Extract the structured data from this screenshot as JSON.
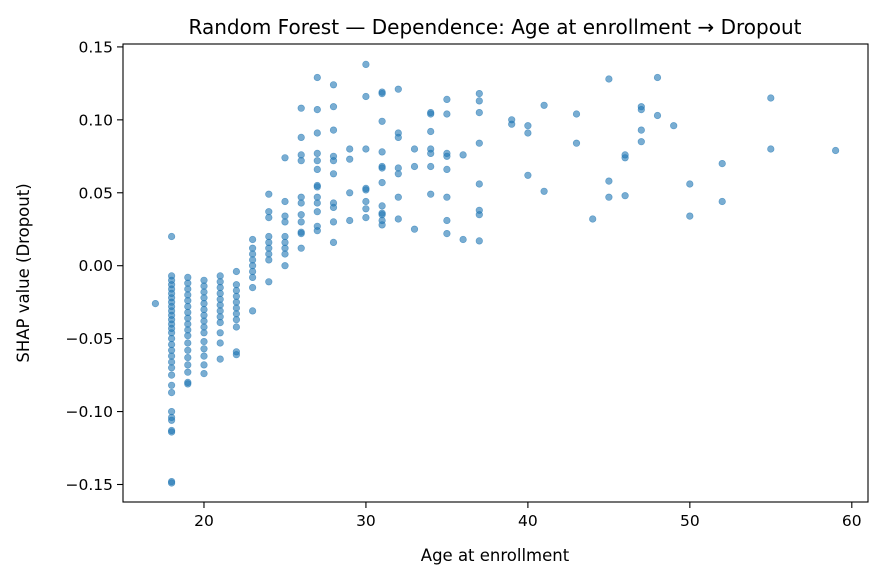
{
  "chart_data": {
    "type": "scatter",
    "title": "Random Forest — Dependence: Age at enrollment → Dropout",
    "xlabel": "Age at enrollment",
    "ylabel": "SHAP value (Dropout)",
    "xlim": [
      15,
      61
    ],
    "ylim": [
      -0.162,
      0.152
    ],
    "xticks": [
      20,
      30,
      40,
      50,
      60
    ],
    "yticks": [
      -0.15,
      -0.1,
      -0.05,
      0.0,
      0.05,
      0.1,
      0.15
    ],
    "xtick_labels": [
      "20",
      "30",
      "40",
      "50",
      "60"
    ],
    "ytick_labels": [
      "−0.15",
      "−0.10",
      "−0.05",
      "0.00",
      "0.05",
      "0.10",
      "0.15"
    ],
    "grid": false,
    "point_color": "#1f77b4",
    "point_opacity": 0.6,
    "series": [
      {
        "points": [
          [
            17,
            -0.026
          ],
          [
            18,
            0.02
          ],
          [
            18,
            -0.007
          ],
          [
            18,
            -0.01
          ],
          [
            18,
            -0.013
          ],
          [
            18,
            -0.016
          ],
          [
            18,
            -0.019
          ],
          [
            18,
            -0.022
          ],
          [
            18,
            -0.025
          ],
          [
            18,
            -0.028
          ],
          [
            18,
            -0.031
          ],
          [
            18,
            -0.034
          ],
          [
            18,
            -0.037
          ],
          [
            18,
            -0.04
          ],
          [
            18,
            -0.043
          ],
          [
            18,
            -0.046
          ],
          [
            18,
            -0.05
          ],
          [
            18,
            -0.054
          ],
          [
            18,
            -0.058
          ],
          [
            18,
            -0.062
          ],
          [
            18,
            -0.066
          ],
          [
            18,
            -0.07
          ],
          [
            18,
            -0.075
          ],
          [
            18,
            -0.082
          ],
          [
            18,
            -0.087
          ],
          [
            18,
            -0.1
          ],
          [
            18,
            -0.104
          ],
          [
            18,
            -0.106
          ],
          [
            18,
            -0.113
          ],
          [
            18,
            -0.114
          ],
          [
            18,
            -0.148
          ],
          [
            18,
            -0.149
          ],
          [
            19,
            -0.008
          ],
          [
            19,
            -0.012
          ],
          [
            19,
            -0.016
          ],
          [
            19,
            -0.02
          ],
          [
            19,
            -0.024
          ],
          [
            19,
            -0.028
          ],
          [
            19,
            -0.032
          ],
          [
            19,
            -0.036
          ],
          [
            19,
            -0.04
          ],
          [
            19,
            -0.044
          ],
          [
            19,
            -0.048
          ],
          [
            19,
            -0.053
          ],
          [
            19,
            -0.058
          ],
          [
            19,
            -0.063
          ],
          [
            19,
            -0.068
          ],
          [
            19,
            -0.073
          ],
          [
            19,
            -0.08
          ],
          [
            19,
            -0.081
          ],
          [
            20,
            -0.01
          ],
          [
            20,
            -0.014
          ],
          [
            20,
            -0.018
          ],
          [
            20,
            -0.022
          ],
          [
            20,
            -0.026
          ],
          [
            20,
            -0.03
          ],
          [
            20,
            -0.034
          ],
          [
            20,
            -0.038
          ],
          [
            20,
            -0.042
          ],
          [
            20,
            -0.046
          ],
          [
            20,
            -0.052
          ],
          [
            20,
            -0.057
          ],
          [
            20,
            -0.062
          ],
          [
            20,
            -0.068
          ],
          [
            20,
            -0.074
          ],
          [
            21,
            -0.007
          ],
          [
            21,
            -0.011
          ],
          [
            21,
            -0.015
          ],
          [
            21,
            -0.019
          ],
          [
            21,
            -0.023
          ],
          [
            21,
            -0.027
          ],
          [
            21,
            -0.031
          ],
          [
            21,
            -0.035
          ],
          [
            21,
            -0.039
          ],
          [
            21,
            -0.046
          ],
          [
            21,
            -0.053
          ],
          [
            21,
            -0.064
          ],
          [
            22,
            -0.004
          ],
          [
            22,
            -0.013
          ],
          [
            22,
            -0.017
          ],
          [
            22,
            -0.021
          ],
          [
            22,
            -0.025
          ],
          [
            22,
            -0.029
          ],
          [
            22,
            -0.033
          ],
          [
            22,
            -0.037
          ],
          [
            22,
            -0.042
          ],
          [
            22,
            -0.059
          ],
          [
            22,
            -0.061
          ],
          [
            23,
            0.018
          ],
          [
            23,
            0.012
          ],
          [
            23,
            0.008
          ],
          [
            23,
            0.004
          ],
          [
            23,
            0.0
          ],
          [
            23,
            -0.004
          ],
          [
            23,
            -0.008
          ],
          [
            23,
            -0.015
          ],
          [
            23,
            -0.031
          ],
          [
            24,
            0.049
          ],
          [
            24,
            0.037
          ],
          [
            24,
            0.033
          ],
          [
            24,
            0.02
          ],
          [
            24,
            0.016
          ],
          [
            24,
            0.012
          ],
          [
            24,
            0.008
          ],
          [
            24,
            0.004
          ],
          [
            24,
            -0.011
          ],
          [
            25,
            0.074
          ],
          [
            25,
            0.044
          ],
          [
            25,
            0.034
          ],
          [
            25,
            0.03
          ],
          [
            25,
            0.02
          ],
          [
            25,
            0.016
          ],
          [
            25,
            0.012
          ],
          [
            25,
            0.008
          ],
          [
            25,
            0.0
          ],
          [
            26,
            0.108
          ],
          [
            26,
            0.088
          ],
          [
            26,
            0.076
          ],
          [
            26,
            0.072
          ],
          [
            26,
            0.047
          ],
          [
            26,
            0.043
          ],
          [
            26,
            0.035
          ],
          [
            26,
            0.03
          ],
          [
            26,
            0.023
          ],
          [
            26,
            0.022
          ],
          [
            26,
            0.012
          ],
          [
            27,
            0.129
          ],
          [
            27,
            0.107
          ],
          [
            27,
            0.091
          ],
          [
            27,
            0.077
          ],
          [
            27,
            0.072
          ],
          [
            27,
            0.066
          ],
          [
            27,
            0.055
          ],
          [
            27,
            0.054
          ],
          [
            27,
            0.047
          ],
          [
            27,
            0.043
          ],
          [
            27,
            0.037
          ],
          [
            27,
            0.027
          ],
          [
            27,
            0.024
          ],
          [
            28,
            0.124
          ],
          [
            28,
            0.109
          ],
          [
            28,
            0.093
          ],
          [
            28,
            0.075
          ],
          [
            28,
            0.072
          ],
          [
            28,
            0.063
          ],
          [
            28,
            0.043
          ],
          [
            28,
            0.04
          ],
          [
            28,
            0.03
          ],
          [
            28,
            0.016
          ],
          [
            29,
            0.08
          ],
          [
            29,
            0.073
          ],
          [
            29,
            0.05
          ],
          [
            29,
            0.031
          ],
          [
            30,
            0.138
          ],
          [
            30,
            0.116
          ],
          [
            30,
            0.08
          ],
          [
            30,
            0.053
          ],
          [
            30,
            0.052
          ],
          [
            30,
            0.044
          ],
          [
            30,
            0.039
          ],
          [
            30,
            0.033
          ],
          [
            31,
            0.119
          ],
          [
            31,
            0.118
          ],
          [
            31,
            0.099
          ],
          [
            31,
            0.078
          ],
          [
            31,
            0.068
          ],
          [
            31,
            0.067
          ],
          [
            31,
            0.057
          ],
          [
            31,
            0.041
          ],
          [
            31,
            0.036
          ],
          [
            31,
            0.035
          ],
          [
            31,
            0.031
          ],
          [
            31,
            0.028
          ],
          [
            32,
            0.121
          ],
          [
            32,
            0.091
          ],
          [
            32,
            0.088
          ],
          [
            32,
            0.067
          ],
          [
            32,
            0.063
          ],
          [
            32,
            0.047
          ],
          [
            32,
            0.032
          ],
          [
            33,
            0.08
          ],
          [
            33,
            0.068
          ],
          [
            33,
            0.025
          ],
          [
            34,
            0.105
          ],
          [
            34,
            0.104
          ],
          [
            34,
            0.092
          ],
          [
            34,
            0.08
          ],
          [
            34,
            0.077
          ],
          [
            34,
            0.068
          ],
          [
            34,
            0.049
          ],
          [
            35,
            0.114
          ],
          [
            35,
            0.104
          ],
          [
            35,
            0.077
          ],
          [
            35,
            0.075
          ],
          [
            35,
            0.066
          ],
          [
            35,
            0.047
          ],
          [
            35,
            0.031
          ],
          [
            35,
            0.022
          ],
          [
            36,
            0.076
          ],
          [
            36,
            0.018
          ],
          [
            37,
            0.118
          ],
          [
            37,
            0.113
          ],
          [
            37,
            0.105
          ],
          [
            37,
            0.084
          ],
          [
            37,
            0.056
          ],
          [
            37,
            0.038
          ],
          [
            37,
            0.035
          ],
          [
            37,
            0.017
          ],
          [
            39,
            0.1
          ],
          [
            39,
            0.097
          ],
          [
            40,
            0.096
          ],
          [
            40,
            0.091
          ],
          [
            40,
            0.062
          ],
          [
            41,
            0.11
          ],
          [
            41,
            0.051
          ],
          [
            43,
            0.104
          ],
          [
            43,
            0.084
          ],
          [
            44,
            0.032
          ],
          [
            45,
            0.128
          ],
          [
            45,
            0.058
          ],
          [
            45,
            0.047
          ],
          [
            46,
            0.076
          ],
          [
            46,
            0.074
          ],
          [
            46,
            0.048
          ],
          [
            47,
            0.109
          ],
          [
            47,
            0.107
          ],
          [
            47,
            0.093
          ],
          [
            47,
            0.085
          ],
          [
            48,
            0.129
          ],
          [
            48,
            0.103
          ],
          [
            49,
            0.096
          ],
          [
            50,
            0.056
          ],
          [
            50,
            0.034
          ],
          [
            52,
            0.07
          ],
          [
            52,
            0.044
          ],
          [
            55,
            0.115
          ],
          [
            55,
            0.08
          ],
          [
            59,
            0.079
          ]
        ]
      }
    ]
  }
}
